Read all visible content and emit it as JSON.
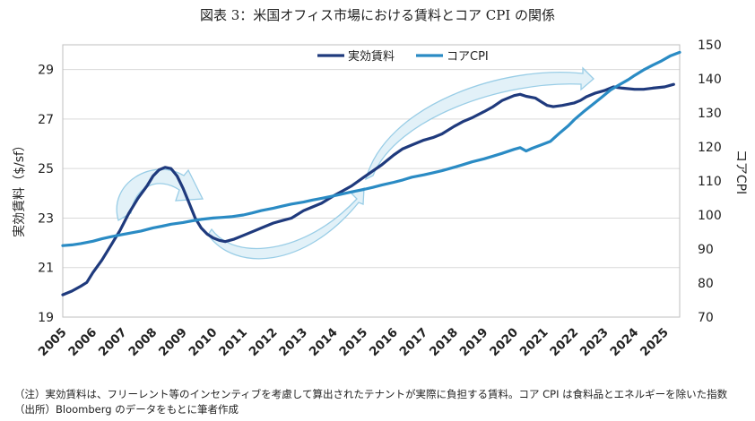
{
  "title": "図表 3：米国オフィス市場における賃料とコア CPI の関係",
  "notes": {
    "line1": "（注）実効賃料は、フリーレント等のインセンティブを考慮して算出されたテナントが実際に負担する賃料。コア CPI は食料品とエネルギーを除いた指数",
    "line2": "（出所）Bloomberg のデータをもとに筆者作成"
  },
  "colors": {
    "rent": "#1f3a7d",
    "cpi": "#2a8bc4",
    "arrow_fill": "#dff0f8",
    "arrow_stroke": "#8ec8e4",
    "grid": "#d9d9d9"
  },
  "chart_data": {
    "type": "line",
    "ylabel_left": "実効賃料（$/sf）",
    "ylabel_right": "コアCPI",
    "ylim_left": [
      19,
      30
    ],
    "ylim_right": [
      70,
      150
    ],
    "yticks_left": [
      "19",
      "21",
      "23",
      "25",
      "27",
      "29"
    ],
    "yticks_right": [
      "70",
      "80",
      "90",
      "100",
      "110",
      "120",
      "130",
      "140",
      "150"
    ],
    "xlim": [
      2005,
      2025.5
    ],
    "xticks": [
      "2005",
      "2006",
      "2007",
      "2008",
      "2009",
      "2010",
      "2011",
      "2012",
      "2013",
      "2014",
      "2015",
      "2016",
      "2017",
      "2018",
      "2019",
      "2020",
      "2021",
      "2022",
      "2023",
      "2024",
      "2025"
    ],
    "grid": "horizontal",
    "legend_position": "top-center",
    "series": [
      {
        "name": "実効賃料",
        "axis": "left",
        "points": [
          [
            2005.0,
            19.9
          ],
          [
            2005.3,
            20.05
          ],
          [
            2005.6,
            20.25
          ],
          [
            2005.8,
            20.4
          ],
          [
            2006.0,
            20.8
          ],
          [
            2006.3,
            21.3
          ],
          [
            2006.6,
            21.9
          ],
          [
            2006.9,
            22.5
          ],
          [
            2007.2,
            23.2
          ],
          [
            2007.5,
            23.8
          ],
          [
            2007.8,
            24.3
          ],
          [
            2008.0,
            24.7
          ],
          [
            2008.2,
            24.95
          ],
          [
            2008.4,
            25.05
          ],
          [
            2008.6,
            25.0
          ],
          [
            2008.8,
            24.7
          ],
          [
            2009.0,
            24.2
          ],
          [
            2009.2,
            23.6
          ],
          [
            2009.4,
            23.0
          ],
          [
            2009.6,
            22.6
          ],
          [
            2009.8,
            22.35
          ],
          [
            2010.0,
            22.2
          ],
          [
            2010.2,
            22.1
          ],
          [
            2010.4,
            22.05
          ],
          [
            2010.7,
            22.15
          ],
          [
            2011.0,
            22.3
          ],
          [
            2011.3,
            22.45
          ],
          [
            2011.6,
            22.6
          ],
          [
            2012.0,
            22.8
          ],
          [
            2012.3,
            22.9
          ],
          [
            2012.6,
            23.0
          ],
          [
            2013.0,
            23.3
          ],
          [
            2013.3,
            23.45
          ],
          [
            2013.6,
            23.6
          ],
          [
            2014.0,
            23.9
          ],
          [
            2014.3,
            24.1
          ],
          [
            2014.6,
            24.3
          ],
          [
            2015.0,
            24.65
          ],
          [
            2015.3,
            24.9
          ],
          [
            2015.6,
            25.15
          ],
          [
            2016.0,
            25.55
          ],
          [
            2016.3,
            25.8
          ],
          [
            2016.6,
            25.95
          ],
          [
            2017.0,
            26.15
          ],
          [
            2017.3,
            26.25
          ],
          [
            2017.6,
            26.4
          ],
          [
            2018.0,
            26.7
          ],
          [
            2018.3,
            26.9
          ],
          [
            2018.6,
            27.05
          ],
          [
            2019.0,
            27.3
          ],
          [
            2019.3,
            27.5
          ],
          [
            2019.6,
            27.75
          ],
          [
            2020.0,
            27.95
          ],
          [
            2020.2,
            28.0
          ],
          [
            2020.4,
            27.92
          ],
          [
            2020.7,
            27.85
          ],
          [
            2020.9,
            27.7
          ],
          [
            2021.1,
            27.55
          ],
          [
            2021.3,
            27.5
          ],
          [
            2021.6,
            27.55
          ],
          [
            2022.0,
            27.65
          ],
          [
            2022.2,
            27.75
          ],
          [
            2022.4,
            27.9
          ],
          [
            2022.7,
            28.05
          ],
          [
            2023.0,
            28.15
          ],
          [
            2023.3,
            28.3
          ],
          [
            2023.6,
            28.25
          ],
          [
            2024.0,
            28.2
          ],
          [
            2024.3,
            28.2
          ],
          [
            2024.6,
            28.25
          ],
          [
            2025.0,
            28.3
          ],
          [
            2025.3,
            28.4
          ]
        ]
      },
      {
        "name": "コアCPI",
        "axis": "right",
        "points": [
          [
            2005.0,
            91.0
          ],
          [
            2005.3,
            91.2
          ],
          [
            2005.6,
            91.6
          ],
          [
            2006.0,
            92.3
          ],
          [
            2006.3,
            93.0
          ],
          [
            2006.6,
            93.6
          ],
          [
            2007.0,
            94.3
          ],
          [
            2007.3,
            94.8
          ],
          [
            2007.6,
            95.3
          ],
          [
            2008.0,
            96.2
          ],
          [
            2008.3,
            96.7
          ],
          [
            2008.6,
            97.3
          ],
          [
            2009.0,
            97.8
          ],
          [
            2009.3,
            98.3
          ],
          [
            2009.6,
            98.7
          ],
          [
            2010.0,
            99.1
          ],
          [
            2010.3,
            99.3
          ],
          [
            2010.6,
            99.5
          ],
          [
            2011.0,
            100.0
          ],
          [
            2011.3,
            100.6
          ],
          [
            2011.6,
            101.3
          ],
          [
            2012.0,
            102.0
          ],
          [
            2012.3,
            102.6
          ],
          [
            2012.6,
            103.2
          ],
          [
            2013.0,
            103.8
          ],
          [
            2013.3,
            104.4
          ],
          [
            2013.6,
            104.9
          ],
          [
            2014.0,
            105.6
          ],
          [
            2014.3,
            106.2
          ],
          [
            2014.6,
            106.8
          ],
          [
            2015.0,
            107.5
          ],
          [
            2015.3,
            108.1
          ],
          [
            2015.6,
            108.8
          ],
          [
            2016.0,
            109.6
          ],
          [
            2016.3,
            110.3
          ],
          [
            2016.6,
            111.1
          ],
          [
            2017.0,
            111.8
          ],
          [
            2017.3,
            112.4
          ],
          [
            2017.6,
            113.0
          ],
          [
            2018.0,
            114.0
          ],
          [
            2018.3,
            114.8
          ],
          [
            2018.6,
            115.6
          ],
          [
            2019.0,
            116.5
          ],
          [
            2019.3,
            117.3
          ],
          [
            2019.6,
            118.1
          ],
          [
            2020.0,
            119.3
          ],
          [
            2020.2,
            119.8
          ],
          [
            2020.4,
            118.8
          ],
          [
            2020.6,
            119.6
          ],
          [
            2020.9,
            120.6
          ],
          [
            2021.2,
            121.6
          ],
          [
            2021.5,
            124.0
          ],
          [
            2021.8,
            126.2
          ],
          [
            2022.0,
            128.0
          ],
          [
            2022.3,
            130.3
          ],
          [
            2022.6,
            132.4
          ],
          [
            2022.9,
            134.5
          ],
          [
            2023.2,
            136.7
          ],
          [
            2023.5,
            138.3
          ],
          [
            2023.8,
            139.8
          ],
          [
            2024.0,
            141.0
          ],
          [
            2024.3,
            142.6
          ],
          [
            2024.6,
            144.0
          ],
          [
            2024.9,
            145.3
          ],
          [
            2025.2,
            146.8
          ],
          [
            2025.5,
            147.8
          ]
        ]
      }
    ]
  }
}
